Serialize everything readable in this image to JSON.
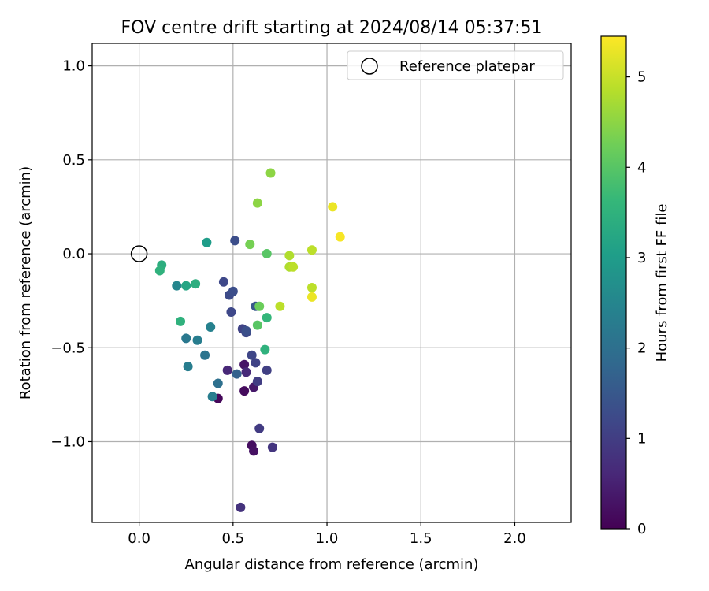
{
  "chart_data": {
    "type": "scatter",
    "title": "FOV centre drift starting at 2024/08/14 05:37:51",
    "xlabel": "Angular distance from reference (arcmin)",
    "ylabel": "Rotation from reference (arcmin)",
    "xlim": [
      -0.25,
      2.3
    ],
    "ylim": [
      -1.43,
      1.12
    ],
    "x_ticks": [
      0.0,
      0.5,
      1.0,
      1.5,
      2.0
    ],
    "x_tick_labels": [
      "0.0",
      "0.5",
      "1.0",
      "1.5",
      "2.0"
    ],
    "y_ticks": [
      1.0,
      0.5,
      0.0,
      -0.5,
      -1.0
    ],
    "y_tick_labels": [
      "1.0",
      "0.5",
      "0.0",
      "−0.5",
      "−1.0"
    ],
    "grid": true,
    "legend": {
      "placement": "top-right",
      "entries": [
        "Reference platepar"
      ]
    },
    "reference_point": {
      "name": "Reference platepar",
      "x": 0.0,
      "y": 0.0
    },
    "colorbar": {
      "label": "Hours from first FF file",
      "colormap": "viridis",
      "range": [
        0,
        5.45
      ],
      "ticks": [
        0,
        1,
        2,
        3,
        4,
        5
      ],
      "tick_labels": [
        "0",
        "1",
        "2",
        "3",
        "4",
        "5"
      ]
    },
    "colormap_stops": [
      "#440154",
      "#482878",
      "#3e4989",
      "#31688e",
      "#26828e",
      "#1f9e89",
      "#35b779",
      "#6ece58",
      "#b5de2b",
      "#fde725"
    ],
    "points": [
      {
        "x": 0.42,
        "y": -0.77,
        "t": 0.1
      },
      {
        "x": 0.56,
        "y": -0.73,
        "t": 0.15
      },
      {
        "x": 0.6,
        "y": -1.02,
        "t": 0.2
      },
      {
        "x": 0.61,
        "y": -1.05,
        "t": 0.25
      },
      {
        "x": 0.56,
        "y": -0.59,
        "t": 0.3
      },
      {
        "x": 0.61,
        "y": -0.71,
        "t": 0.35
      },
      {
        "x": 0.47,
        "y": -0.62,
        "t": 0.6
      },
      {
        "x": 0.57,
        "y": -0.63,
        "t": 0.65
      },
      {
        "x": 0.54,
        "y": -1.35,
        "t": 0.8
      },
      {
        "x": 0.71,
        "y": -1.03,
        "t": 0.85
      },
      {
        "x": 0.64,
        "y": -0.93,
        "t": 0.95
      },
      {
        "x": 0.63,
        "y": -0.68,
        "t": 1.0
      },
      {
        "x": 0.68,
        "y": -0.62,
        "t": 1.05
      },
      {
        "x": 0.62,
        "y": -0.58,
        "t": 1.1
      },
      {
        "x": 0.6,
        "y": -0.54,
        "t": 1.15
      },
      {
        "x": 0.55,
        "y": -0.4,
        "t": 1.1
      },
      {
        "x": 0.57,
        "y": -0.42,
        "t": 1.2
      },
      {
        "x": 0.49,
        "y": -0.31,
        "t": 1.2
      },
      {
        "x": 0.45,
        "y": -0.15,
        "t": 1.2
      },
      {
        "x": 0.48,
        "y": -0.22,
        "t": 1.25
      },
      {
        "x": 0.5,
        "y": -0.2,
        "t": 1.3
      },
      {
        "x": 0.51,
        "y": 0.07,
        "t": 1.3
      },
      {
        "x": 0.57,
        "y": -0.41,
        "t": 1.35
      },
      {
        "x": 0.62,
        "y": -0.28,
        "t": 1.5
      },
      {
        "x": 0.52,
        "y": -0.64,
        "t": 1.7
      },
      {
        "x": 0.42,
        "y": -0.69,
        "t": 2.0
      },
      {
        "x": 0.39,
        "y": -0.76,
        "t": 2.3
      },
      {
        "x": 0.35,
        "y": -0.54,
        "t": 2.1
      },
      {
        "x": 0.26,
        "y": -0.6,
        "t": 2.3
      },
      {
        "x": 0.25,
        "y": -0.45,
        "t": 2.2
      },
      {
        "x": 0.31,
        "y": -0.46,
        "t": 2.3
      },
      {
        "x": 0.38,
        "y": -0.39,
        "t": 2.4
      },
      {
        "x": 0.2,
        "y": -0.17,
        "t": 2.5
      },
      {
        "x": 0.12,
        "y": -0.06,
        "t": 3.4
      },
      {
        "x": 0.11,
        "y": -0.09,
        "t": 3.5
      },
      {
        "x": 0.22,
        "y": -0.36,
        "t": 3.5
      },
      {
        "x": 0.25,
        "y": -0.17,
        "t": 3.2
      },
      {
        "x": 0.3,
        "y": -0.16,
        "t": 3.4
      },
      {
        "x": 0.36,
        "y": 0.06,
        "t": 3.0
      },
      {
        "x": 0.67,
        "y": -0.51,
        "t": 3.5
      },
      {
        "x": 0.68,
        "y": -0.34,
        "t": 3.6
      },
      {
        "x": 0.63,
        "y": -0.38,
        "t": 4.0
      },
      {
        "x": 0.64,
        "y": -0.28,
        "t": 4.2
      },
      {
        "x": 0.59,
        "y": 0.05,
        "t": 4.3
      },
      {
        "x": 0.68,
        "y": 0.0,
        "t": 4.0
      },
      {
        "x": 0.63,
        "y": 0.27,
        "t": 4.5
      },
      {
        "x": 0.7,
        "y": 0.43,
        "t": 4.5
      },
      {
        "x": 0.75,
        "y": -0.28,
        "t": 4.9
      },
      {
        "x": 0.8,
        "y": -0.01,
        "t": 4.8
      },
      {
        "x": 0.8,
        "y": -0.07,
        "t": 4.8
      },
      {
        "x": 0.82,
        "y": -0.07,
        "t": 4.9
      },
      {
        "x": 0.92,
        "y": 0.02,
        "t": 4.9
      },
      {
        "x": 0.92,
        "y": -0.18,
        "t": 4.9
      },
      {
        "x": 0.92,
        "y": -0.23,
        "t": 5.3
      },
      {
        "x": 1.03,
        "y": 0.25,
        "t": 5.3
      },
      {
        "x": 1.07,
        "y": 0.09,
        "t": 5.4
      }
    ]
  }
}
